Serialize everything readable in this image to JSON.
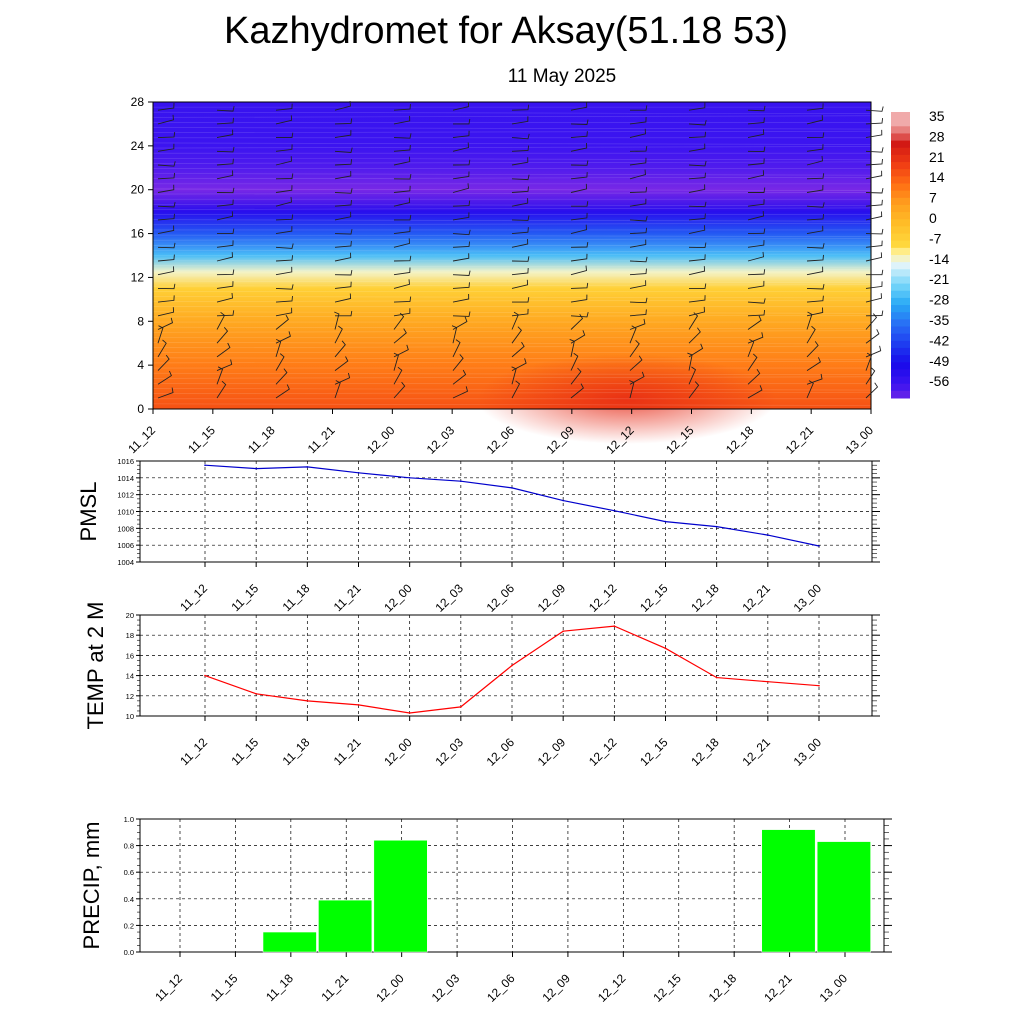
{
  "header": {
    "title": "Kazhydromet for Aksay(51.18 53)",
    "subtitle": "11 May 2025"
  },
  "colors": {
    "pmsl_line": "#0000cc",
    "temp_line": "#ff0000",
    "precip_bar": "#00ff00",
    "grid": "#000000"
  },
  "time_labels": [
    "11_12",
    "11_15",
    "11_18",
    "11_21",
    "12_00",
    "12_03",
    "12_06",
    "12_09",
    "12_12",
    "12_15",
    "12_18",
    "12_21",
    "13_00"
  ],
  "chart_data": [
    {
      "type": "heatmap",
      "title": "Kazhydromet for Aksay(51.18 53)",
      "subtitle": "11 May 2025",
      "x": [
        "11_12",
        "11_15",
        "11_18",
        "11_21",
        "12_00",
        "12_03",
        "12_06",
        "12_09",
        "12_12",
        "12_15",
        "12_18",
        "12_21",
        "13_00"
      ],
      "ylabel": "",
      "y_ticks": [
        0,
        4,
        8,
        12,
        16,
        20,
        24,
        28
      ],
      "ylim": [
        0,
        28
      ],
      "colorbar_labels": [
        "35",
        "28",
        "21",
        "14",
        "7",
        "0",
        "-7",
        "-14",
        "-21",
        "-28",
        "-35",
        "-42",
        "-49",
        "-56"
      ],
      "temperature_profile": [
        {
          "height": 0,
          "value": 18
        },
        {
          "height": 4,
          "value": 12
        },
        {
          "height": 8,
          "value": 5
        },
        {
          "height": 11,
          "value": -5
        },
        {
          "height": 12.5,
          "value": -12
        },
        {
          "height": 14,
          "value": -25
        },
        {
          "height": 16,
          "value": -38
        },
        {
          "height": 18,
          "value": -52
        },
        {
          "height": 20,
          "value": -62
        },
        {
          "height": 22,
          "value": -58
        },
        {
          "height": 24,
          "value": -56
        },
        {
          "height": 28,
          "value": -55
        }
      ],
      "wind_barbs": true
    },
    {
      "type": "line",
      "ylabel": "PMSL",
      "x": [
        "11_12",
        "11_15",
        "11_18",
        "11_21",
        "12_00",
        "12_03",
        "12_06",
        "12_09",
        "12_12",
        "12_15",
        "12_18",
        "12_21",
        "13_00"
      ],
      "values": [
        1015.5,
        1015.1,
        1015.3,
        1014.6,
        1014.0,
        1013.6,
        1012.8,
        1011.3,
        1010.1,
        1008.8,
        1008.2,
        1007.2,
        1005.9
      ],
      "ylim": [
        1004,
        1016
      ],
      "y_ticks": [
        1004,
        1006,
        1008,
        1010,
        1012,
        1014,
        1016
      ],
      "grid": true
    },
    {
      "type": "line",
      "ylabel": "TEMP at 2 M",
      "x": [
        "11_12",
        "11_15",
        "11_18",
        "11_21",
        "12_00",
        "12_03",
        "12_06",
        "12_09",
        "12_12",
        "12_15",
        "12_18",
        "12_21",
        "13_00"
      ],
      "values": [
        14.0,
        12.2,
        11.5,
        11.1,
        10.3,
        10.9,
        15.0,
        18.4,
        18.9,
        16.7,
        13.8,
        13.4,
        13.0
      ],
      "ylim": [
        10,
        20
      ],
      "y_ticks": [
        10,
        12,
        14,
        16,
        18,
        20
      ],
      "grid": true
    },
    {
      "type": "bar",
      "ylabel": "PRECIP, mm",
      "categories": [
        "11_12",
        "11_15",
        "11_18",
        "11_21",
        "12_00",
        "12_03",
        "12_06",
        "12_09",
        "12_12",
        "12_15",
        "12_18",
        "12_21",
        "13_00"
      ],
      "values": [
        0,
        0,
        0.15,
        0.39,
        0.84,
        0,
        0,
        0,
        0,
        0,
        0,
        0.92,
        0.83
      ],
      "ylim": [
        0,
        1.0
      ],
      "y_ticks": [
        "0.0",
        "0.2",
        "0.4",
        "0.6",
        "0.8",
        "1.0"
      ],
      "grid": true
    }
  ]
}
